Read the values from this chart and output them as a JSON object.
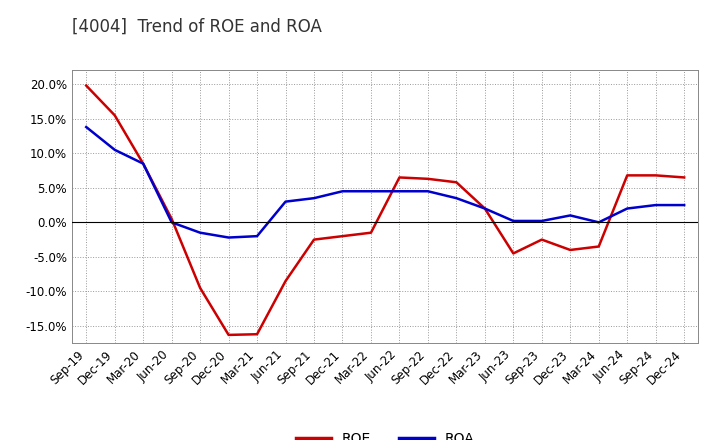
{
  "title": "[4004]  Trend of ROE and ROA",
  "x_labels": [
    "Sep-19",
    "Dec-19",
    "Mar-20",
    "Jun-20",
    "Sep-20",
    "Dec-20",
    "Mar-21",
    "Jun-21",
    "Sep-21",
    "Dec-21",
    "Mar-22",
    "Jun-22",
    "Sep-22",
    "Dec-22",
    "Mar-23",
    "Jun-23",
    "Sep-23",
    "Dec-23",
    "Mar-24",
    "Jun-24",
    "Sep-24",
    "Dec-24"
  ],
  "roe": [
    19.8,
    15.5,
    8.5,
    0.5,
    -9.5,
    -16.3,
    -16.2,
    -8.5,
    -2.5,
    -2.0,
    -1.5,
    6.5,
    6.3,
    5.8,
    2.0,
    -4.5,
    -2.5,
    -4.0,
    -3.5,
    6.8,
    6.8,
    6.5
  ],
  "roa": [
    13.8,
    10.5,
    8.5,
    0.0,
    -1.5,
    -2.2,
    -2.0,
    3.0,
    3.5,
    4.5,
    4.5,
    4.5,
    4.5,
    3.5,
    2.0,
    0.2,
    0.2,
    1.0,
    0.0,
    2.0,
    2.5,
    2.5
  ],
  "roe_color": "#cc0000",
  "roa_color": "#0000cc",
  "ylim_min": -17.5,
  "ylim_max": 22.0,
  "yticks": [
    -15.0,
    -10.0,
    -5.0,
    0.0,
    5.0,
    10.0,
    15.0,
    20.0
  ],
  "background_color": "#ffffff",
  "grid_color": "#999999",
  "title_fontsize": 12,
  "legend_fontsize": 10,
  "tick_fontsize": 8.5
}
